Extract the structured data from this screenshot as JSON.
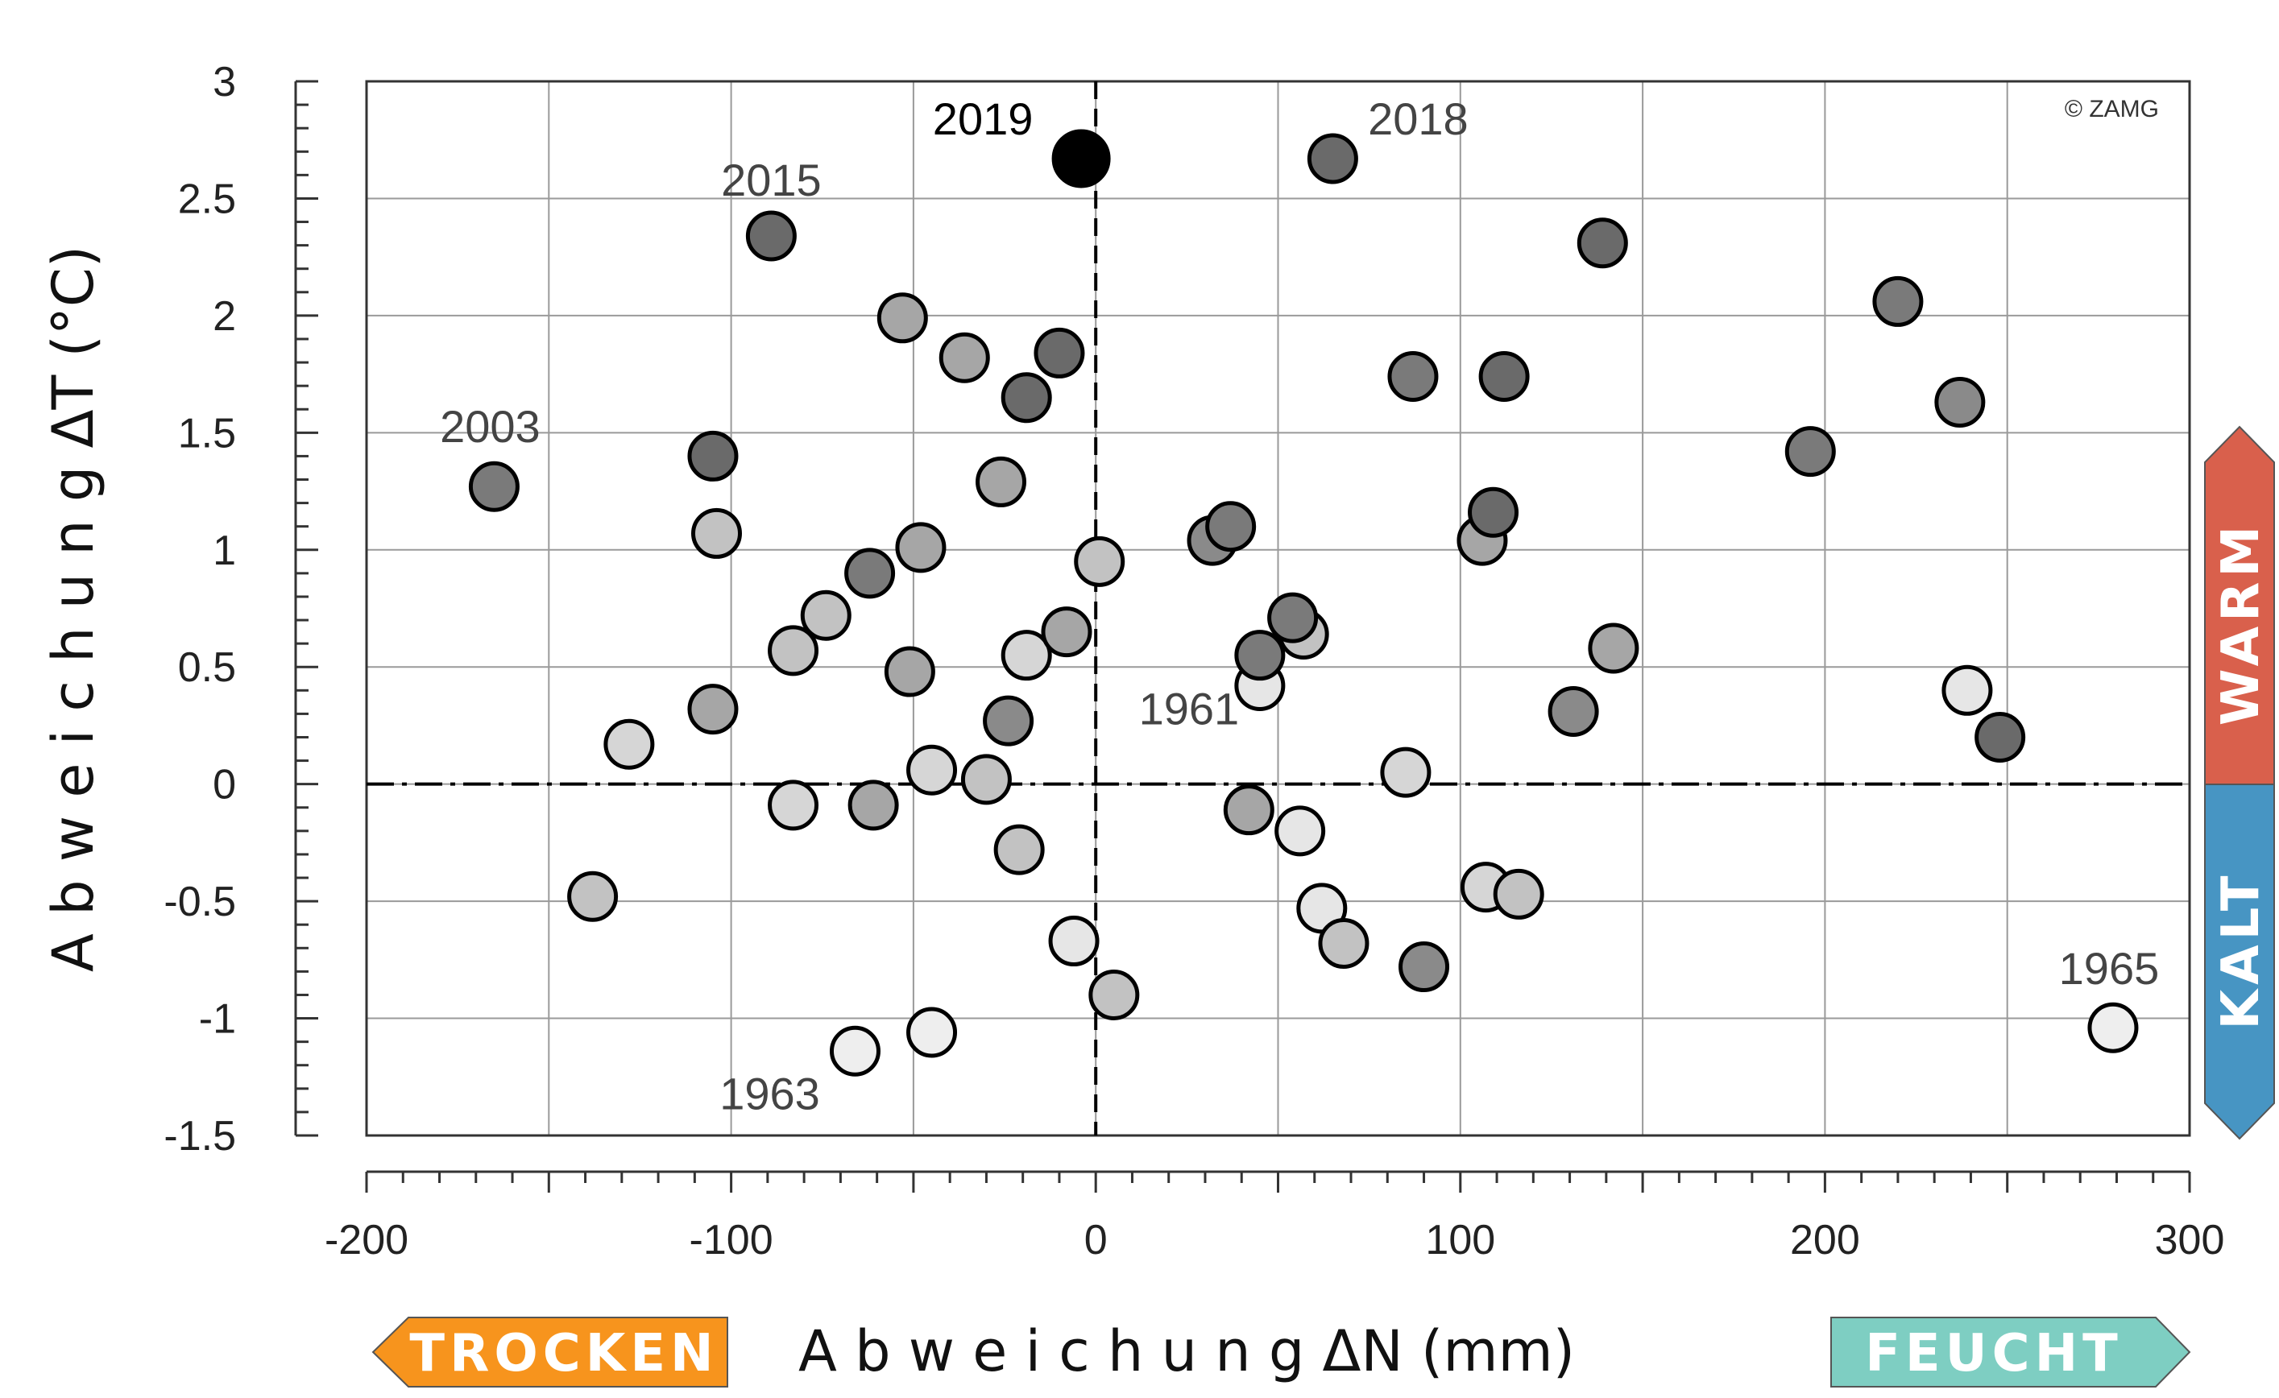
{
  "chart_data": {
    "type": "scatter",
    "xlabel": "A b w e i c h u n g    ΔN  (mm)",
    "ylabel": "A b w e i c h u n g    ΔT  (°C)",
    "xlim": [
      -200,
      300
    ],
    "ylim": [
      -1.5,
      3
    ],
    "xticks": [
      "-200",
      "-100",
      "0",
      "100",
      "200",
      "300"
    ],
    "yticks": [
      "-1.5",
      "-1",
      "-0.5",
      "0",
      "0.5",
      "1",
      "1.5",
      "2",
      "2.5",
      "3"
    ],
    "copyright": "© ZAMG",
    "reference_lines": {
      "x": 0,
      "y": 0
    },
    "grid": true,
    "indicators": {
      "dry": {
        "label": "TROCKEN",
        "color": "#f7941d"
      },
      "wet": {
        "label": "FEUCHT",
        "color": "#7ecec2"
      },
      "warm": {
        "label": "WARM",
        "color": "#d9604c"
      },
      "cold": {
        "label": "KALT",
        "color": "#4795c3"
      }
    },
    "annotations": [
      {
        "text": "2019",
        "x": -4,
        "y": 2.67,
        "highlight": true
      },
      {
        "text": "2018",
        "x": 65,
        "y": 2.67
      },
      {
        "text": "2015",
        "x": -89,
        "y": 2.34
      },
      {
        "text": "2003",
        "x": -165,
        "y": 1.27
      },
      {
        "text": "1961",
        "x": 45,
        "y": 0.42
      },
      {
        "text": "1963",
        "x": -66,
        "y": -1.14
      },
      {
        "text": "1965",
        "x": 279,
        "y": -1.04
      }
    ],
    "points": [
      {
        "x": -4,
        "y": 2.67,
        "color": "#000000",
        "highlight": true
      },
      {
        "x": 65,
        "y": 2.67,
        "color": "#6a6a6a"
      },
      {
        "x": -89,
        "y": 2.34,
        "color": "#6a6a6a"
      },
      {
        "x": 139,
        "y": 2.31,
        "color": "#6a6a6a"
      },
      {
        "x": 220,
        "y": 2.06,
        "color": "#7a7a7a"
      },
      {
        "x": -53,
        "y": 1.99,
        "color": "#a6a6a6"
      },
      {
        "x": -36,
        "y": 1.82,
        "color": "#a6a6a6"
      },
      {
        "x": -10,
        "y": 1.84,
        "color": "#6a6a6a"
      },
      {
        "x": -19,
        "y": 1.65,
        "color": "#6a6a6a"
      },
      {
        "x": 87,
        "y": 1.74,
        "color": "#7a7a7a"
      },
      {
        "x": 112,
        "y": 1.74,
        "color": "#6a6a6a"
      },
      {
        "x": 237,
        "y": 1.63,
        "color": "#8a8a8a"
      },
      {
        "x": 196,
        "y": 1.42,
        "color": "#7a7a7a"
      },
      {
        "x": -165,
        "y": 1.27,
        "color": "#7a7a7a"
      },
      {
        "x": -105,
        "y": 1.4,
        "color": "#6a6a6a"
      },
      {
        "x": -26,
        "y": 1.29,
        "color": "#a6a6a6"
      },
      {
        "x": -104,
        "y": 1.07,
        "color": "#c2c2c2"
      },
      {
        "x": -48,
        "y": 1.01,
        "color": "#a6a6a6"
      },
      {
        "x": -62,
        "y": 0.9,
        "color": "#7a7a7a"
      },
      {
        "x": 1,
        "y": 0.95,
        "color": "#c2c2c2"
      },
      {
        "x": 32,
        "y": 1.04,
        "color": "#8a8a8a"
      },
      {
        "x": 37,
        "y": 1.1,
        "color": "#7a7a7a"
      },
      {
        "x": 106,
        "y": 1.04,
        "color": "#a6a6a6"
      },
      {
        "x": 109,
        "y": 1.16,
        "color": "#6a6a6a"
      },
      {
        "x": -74,
        "y": 0.72,
        "color": "#c2c2c2"
      },
      {
        "x": -83,
        "y": 0.57,
        "color": "#c2c2c2"
      },
      {
        "x": -51,
        "y": 0.48,
        "color": "#a6a6a6"
      },
      {
        "x": -19,
        "y": 0.55,
        "color": "#d6d6d6"
      },
      {
        "x": -8,
        "y": 0.65,
        "color": "#a6a6a6"
      },
      {
        "x": 45,
        "y": 0.42,
        "color": "#e6e6e6"
      },
      {
        "x": 57,
        "y": 0.64,
        "color": "#c2c2c2"
      },
      {
        "x": 54,
        "y": 0.71,
        "color": "#7a7a7a"
      },
      {
        "x": 45,
        "y": 0.55,
        "color": "#7a7a7a"
      },
      {
        "x": 142,
        "y": 0.58,
        "color": "#a6a6a6"
      },
      {
        "x": 239,
        "y": 0.4,
        "color": "#e6e6e6"
      },
      {
        "x": 131,
        "y": 0.31,
        "color": "#8a8a8a"
      },
      {
        "x": 248,
        "y": 0.2,
        "color": "#6a6a6a"
      },
      {
        "x": -105,
        "y": 0.32,
        "color": "#a6a6a6"
      },
      {
        "x": -128,
        "y": 0.17,
        "color": "#d6d6d6"
      },
      {
        "x": -24,
        "y": 0.27,
        "color": "#8a8a8a"
      },
      {
        "x": -45,
        "y": 0.06,
        "color": "#d6d6d6"
      },
      {
        "x": -30,
        "y": 0.02,
        "color": "#c2c2c2"
      },
      {
        "x": 85,
        "y": 0.05,
        "color": "#d6d6d6"
      },
      {
        "x": -83,
        "y": -0.09,
        "color": "#d6d6d6"
      },
      {
        "x": -61,
        "y": -0.09,
        "color": "#a6a6a6"
      },
      {
        "x": -21,
        "y": -0.28,
        "color": "#c2c2c2"
      },
      {
        "x": 42,
        "y": -0.11,
        "color": "#a6a6a6"
      },
      {
        "x": 56,
        "y": -0.2,
        "color": "#e6e6e6"
      },
      {
        "x": -138,
        "y": -0.48,
        "color": "#c2c2c2"
      },
      {
        "x": 62,
        "y": -0.53,
        "color": "#e6e6e6"
      },
      {
        "x": 68,
        "y": -0.68,
        "color": "#c2c2c2"
      },
      {
        "x": 90,
        "y": -0.78,
        "color": "#8a8a8a"
      },
      {
        "x": 107,
        "y": -0.44,
        "color": "#d6d6d6"
      },
      {
        "x": 116,
        "y": -0.47,
        "color": "#c2c2c2"
      },
      {
        "x": -6,
        "y": -0.67,
        "color": "#e6e6e6"
      },
      {
        "x": 5,
        "y": -0.9,
        "color": "#c2c2c2"
      },
      {
        "x": -45,
        "y": -1.06,
        "color": "#eeeeee"
      },
      {
        "x": -66,
        "y": -1.14,
        "color": "#eeeeee"
      },
      {
        "x": 279,
        "y": -1.04,
        "color": "#eeeeee"
      }
    ]
  }
}
